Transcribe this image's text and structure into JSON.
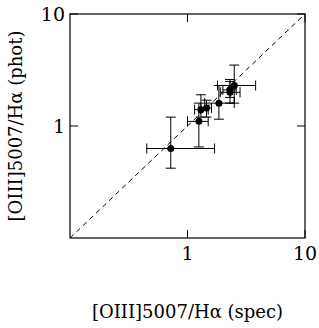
{
  "chart_data": {
    "type": "scatter",
    "xlabel": "[OIII]5007/Hα (spec)",
    "ylabel": "[OIII]5007/Hα (phot)",
    "log": true,
    "xlim": [
      0.1,
      10
    ],
    "ylim": [
      0.1,
      10
    ],
    "xticks": [
      1,
      10
    ],
    "yticks": [
      1,
      10
    ],
    "color": "#000000",
    "marker": "circle",
    "x": [
      0.72,
      1.25,
      1.3,
      1.45,
      1.85,
      2.3,
      2.5,
      2.3
    ],
    "values": [
      0.63,
      1.1,
      1.4,
      1.45,
      1.6,
      2.0,
      2.3,
      2.1
    ],
    "xerr": [
      [
        0.27,
        0.98
      ],
      [
        0.25,
        0.25
      ],
      [
        0.15,
        0.2
      ],
      [
        0.15,
        0.15
      ],
      [
        0.45,
        0.65
      ],
      [
        0.4,
        0.5
      ],
      [
        0.7,
        1.3
      ],
      [
        0.3,
        0.3
      ]
    ],
    "yerr": [
      [
        0.21,
        0.57
      ],
      [
        0.45,
        0.5
      ],
      [
        0.2,
        0.5
      ],
      [
        0.25,
        0.25
      ],
      [
        0.45,
        0.7
      ],
      [
        0.4,
        0.6
      ],
      [
        0.7,
        1.2
      ],
      [
        0.3,
        0.4
      ]
    ]
  }
}
